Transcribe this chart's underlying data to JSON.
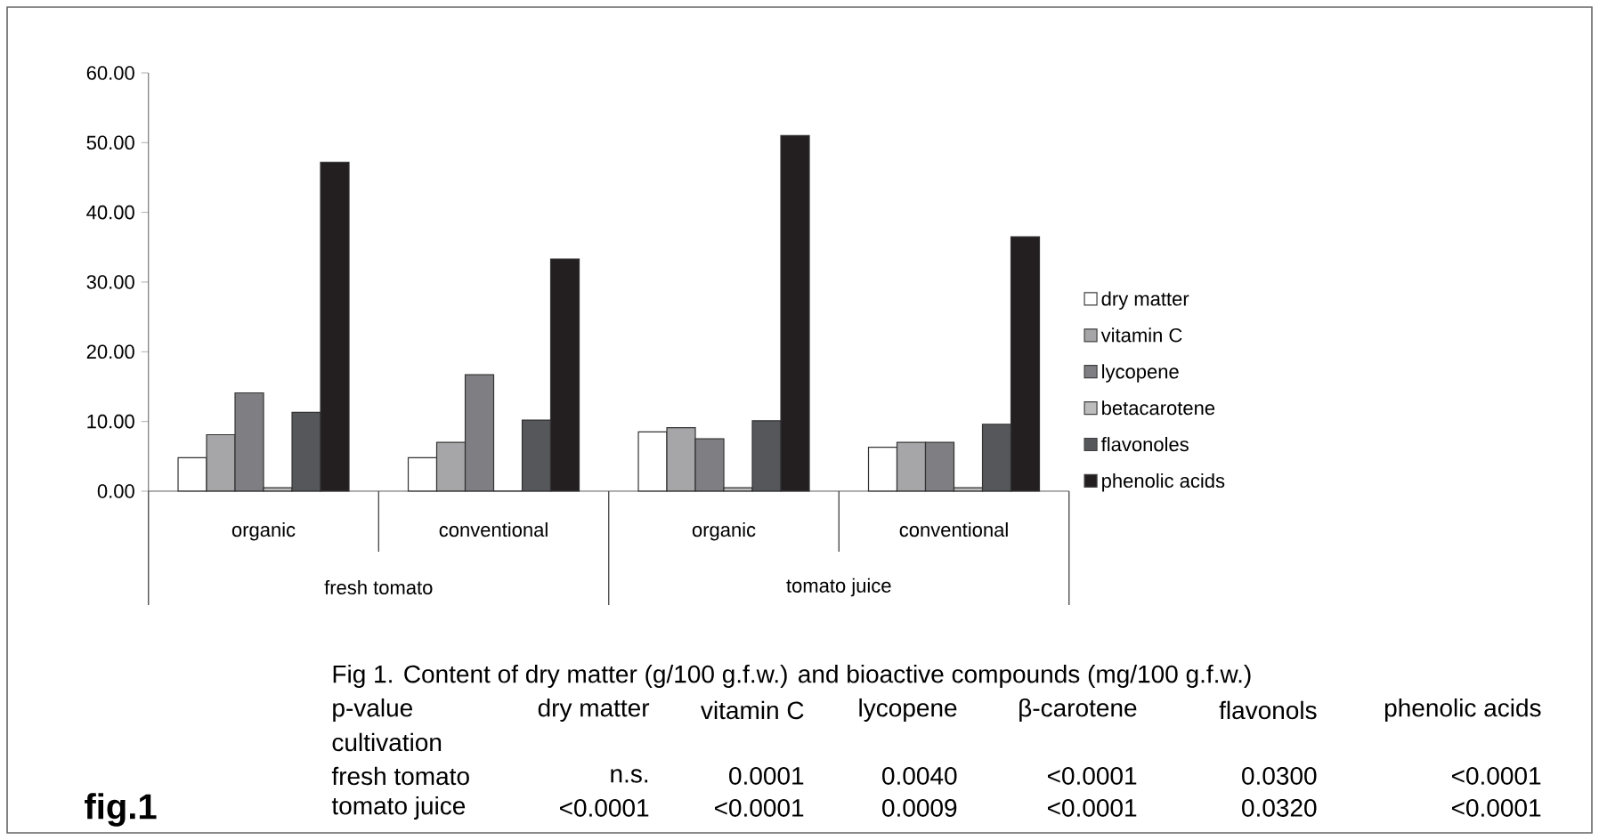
{
  "chart_data": {
    "type": "bar",
    "categories": [
      "organic",
      "conventional",
      "organic",
      "conventional"
    ],
    "series": [
      {
        "name": "dry matter",
        "color": "#ffffff",
        "values": [
          4.8,
          4.8,
          8.5,
          6.3
        ]
      },
      {
        "name": "vitamin C",
        "color": "#a6a6a8",
        "values": [
          8.1,
          7.0,
          9.1,
          7.0
        ]
      },
      {
        "name": "lycopene",
        "color": "#7f7f83",
        "values": [
          14.1,
          16.7,
          7.5,
          7.0
        ]
      },
      {
        "name": "betacarotene",
        "color": "#bdbdbd",
        "values": [
          0.5,
          0,
          0.5,
          0.5
        ]
      },
      {
        "name": "flavonoles",
        "color": "#56575a",
        "values": [
          11.3,
          10.2,
          10.1,
          9.6
        ]
      },
      {
        "name": "phenolic acids",
        "color": "#231f20",
        "values": [
          47.2,
          33.3,
          51.0,
          36.5
        ]
      }
    ],
    "ylim": [
      0,
      60
    ],
    "yticks": [
      {
        "value": 0,
        "label": "0.00"
      },
      {
        "value": 10,
        "label": "10.00"
      },
      {
        "value": 20,
        "label": "20.00"
      },
      {
        "value": 30,
        "label": "30.00"
      },
      {
        "value": 40,
        "label": "40.00"
      },
      {
        "value": 50,
        "label": "50.00"
      },
      {
        "value": 60,
        "label": "60.00"
      }
    ],
    "legend": "right",
    "annotations": [
      "fresh tomato",
      "tomato juice",
      "Fig 1. Content of dry matter (g/100 g.f.w.) and bioactive compounds (mg/100 g.f.w.)",
      "p-value",
      "dry matter",
      "vitamin C",
      "lycopene",
      "β-carotene",
      "flavonols",
      "phenolic acids",
      "cultivation",
      "fresh tomato",
      "n.s.",
      "0.0001",
      "0.0040",
      "<0.0001",
      "0.0300",
      "<0.0001",
      "tomato juice",
      "<0.0001",
      "<0.0001",
      "0.0009",
      "<0.0001",
      "0.0320",
      "<0.0001",
      "fig.1"
    ]
  }
}
